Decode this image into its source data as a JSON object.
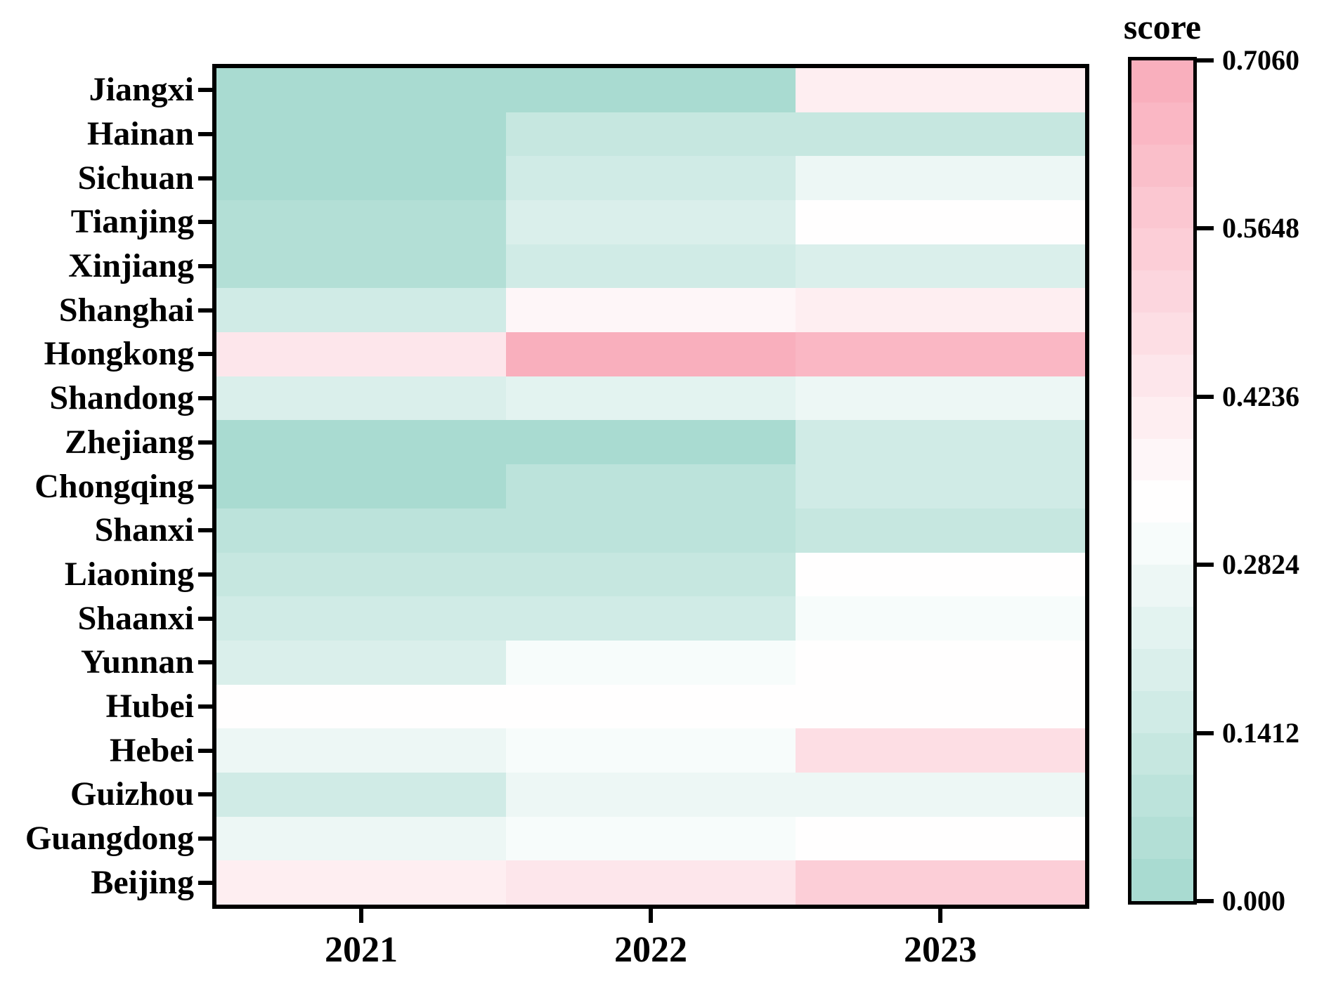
{
  "figure": {
    "background": "#ffffff",
    "axis_color": "#000000"
  },
  "chart_data": {
    "type": "heatmap",
    "title": "score",
    "xlabel": "",
    "ylabel": "",
    "columns": [
      "2021",
      "2022",
      "2023"
    ],
    "rows": [
      "Jiangxi",
      "Hainan",
      "Sichuan",
      "Tianjing",
      "Xinjiang",
      "Shanghai",
      "Hongkong",
      "Shandong",
      "Zhejiang",
      "Chongqing",
      "Shanxi",
      "Liaoning",
      "Shaanxi",
      "Yunnan",
      "Hubei",
      "Hebei",
      "Guizhou",
      "Guangdong",
      "Beijing"
    ],
    "series": [
      {
        "name": "2021",
        "values": [
          0.03,
          0.03,
          0.03,
          0.04,
          0.07,
          0.16,
          0.44,
          0.2,
          0.02,
          0.03,
          0.09,
          0.12,
          0.15,
          0.19,
          0.32,
          0.28,
          0.16,
          0.26,
          0.41
        ]
      },
      {
        "name": "2022",
        "values": [
          0.03,
          0.12,
          0.16,
          0.2,
          0.15,
          0.36,
          0.68,
          0.24,
          0.02,
          0.1,
          0.1,
          0.14,
          0.155,
          0.3,
          0.32,
          0.31,
          0.27,
          0.3,
          0.44
        ]
      },
      {
        "name": "2023",
        "values": [
          0.4,
          0.12,
          0.26,
          0.32,
          0.21,
          0.41,
          0.66,
          0.27,
          0.17,
          0.17,
          0.12,
          0.32,
          0.31,
          0.33,
          0.32,
          0.46,
          0.27,
          0.32,
          0.54
        ]
      }
    ],
    "colorbar": {
      "title": "score",
      "tick_labels": [
        "0.7060",
        "0.5648",
        "0.4236",
        "0.2824",
        "0.1412",
        "0.000"
      ],
      "vmin": 0.0,
      "vmax": 0.706,
      "steps": 20
    },
    "colormap": {
      "low": "#a4d9ce",
      "mid": "#ffffff",
      "mid_value": 0.33,
      "high": "#f9abba"
    },
    "legend": null,
    "grid": false
  }
}
